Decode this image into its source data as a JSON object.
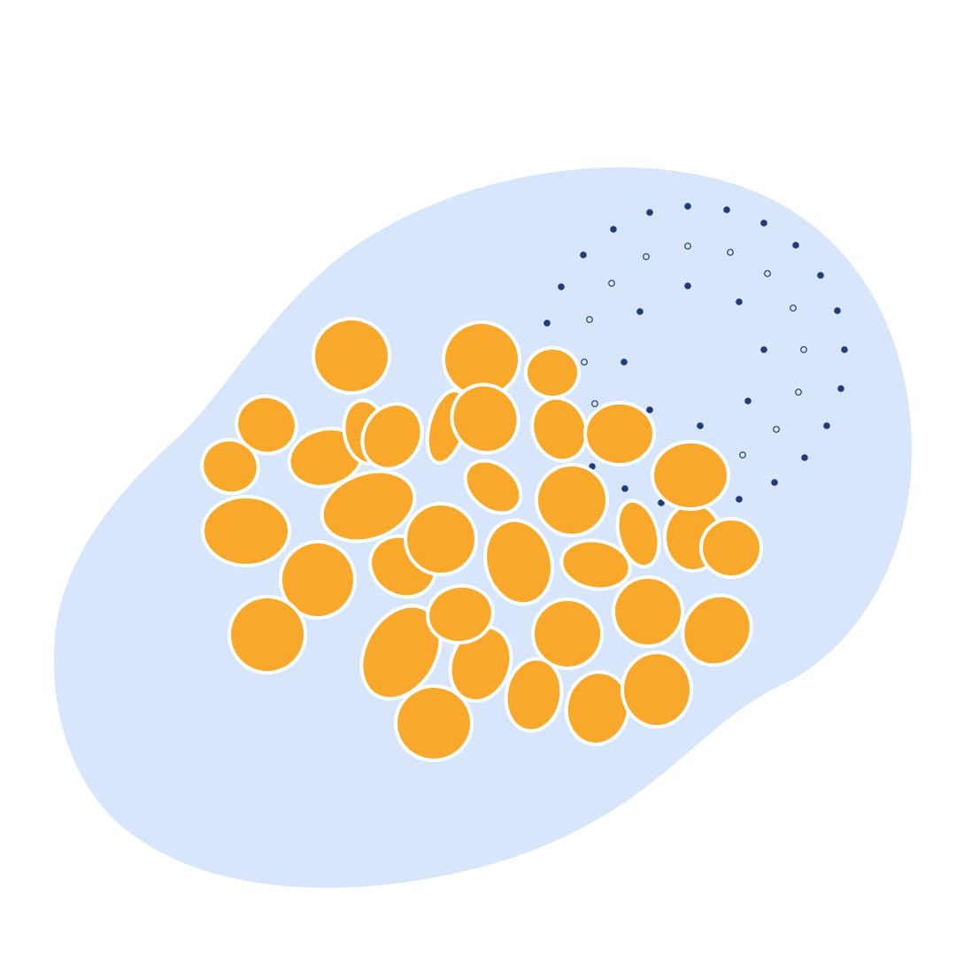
{
  "colors": {
    "background": "#ffffff",
    "blob": "#d8e6fc",
    "ellipse_fill": "#f8a92b",
    "ellipse_stroke": "#ffffff",
    "dot": "#1f3b7a"
  },
  "illustration": {
    "elements": [
      "background-blob",
      "orange-ellipse-cluster",
      "dot-grid"
    ]
  }
}
